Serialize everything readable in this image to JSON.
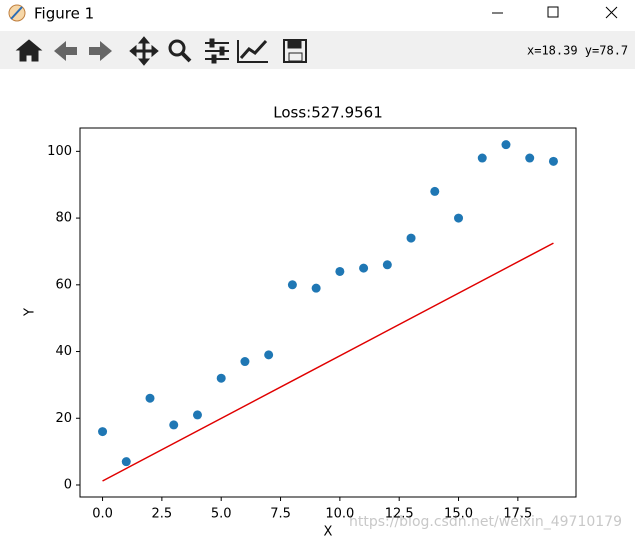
{
  "window": {
    "title": "Figure 1"
  },
  "toolbar": {
    "coords": "x=18.39 y=78.7"
  },
  "chart_data": {
    "type": "scatter",
    "title": "Loss:527.9561",
    "x_label": "X",
    "y_label": "Y",
    "points": {
      "color": "#1f77b4",
      "x": [
        0,
        1,
        2,
        3,
        4,
        5,
        6,
        7,
        8,
        9,
        10,
        11,
        12,
        13,
        14,
        15,
        16,
        17,
        18,
        19
      ],
      "y": [
        16,
        7,
        26,
        18,
        21,
        32,
        37,
        39,
        60,
        59,
        64,
        65,
        66,
        74,
        88,
        80,
        98,
        102,
        98,
        97
      ]
    },
    "fit_line": {
      "color": "#e00000",
      "x": [
        0,
        19
      ],
      "y": [
        1.2,
        72.5
      ]
    },
    "xlim": [
      -0.95,
      19.95
    ],
    "ylim": [
      -3.6,
      107
    ],
    "xticks": [
      {
        "value": 0,
        "label": "0.0"
      },
      2.5,
      {
        "value": 5,
        "label": "5.0"
      },
      7.5,
      {
        "value": 10,
        "label": "10.0"
      },
      12.5,
      {
        "value": 15,
        "label": "15.0"
      },
      17.5
    ],
    "yticks": [
      0,
      20,
      40,
      60,
      80,
      100
    ]
  },
  "watermark": "https://blog.csdn.net/weixin_49710179"
}
